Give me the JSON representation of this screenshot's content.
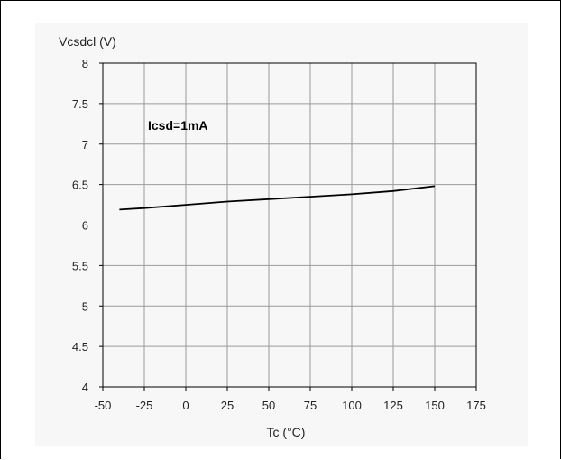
{
  "chart_data": {
    "type": "line",
    "ylabel": "Vcsdcl (V)",
    "xlabel": "Tc (°C)",
    "annotation": "Icsd=1mA",
    "xlim": [
      -50,
      175
    ],
    "ylim": [
      4,
      8
    ],
    "x_ticks": [
      -50,
      -25,
      0,
      25,
      50,
      75,
      100,
      125,
      150,
      175
    ],
    "x_tick_labels": [
      "-50",
      "-25",
      "0",
      "25",
      "50",
      "75",
      "100",
      "125",
      "150",
      "175"
    ],
    "y_ticks": [
      4,
      4.5,
      5,
      5.5,
      6,
      6.5,
      7,
      7.5,
      8
    ],
    "y_tick_labels": [
      "4",
      "4.5",
      "5",
      "5.5",
      "6",
      "6.5",
      "7",
      "7.5",
      "8"
    ],
    "grid": true,
    "series": [
      {
        "x": [
          -40,
          -25,
          0,
          25,
          50,
          75,
          100,
          125,
          150
        ],
        "y": [
          6.19,
          6.21,
          6.25,
          6.29,
          6.32,
          6.35,
          6.38,
          6.42,
          6.48
        ],
        "color": "#000000"
      }
    ]
  }
}
